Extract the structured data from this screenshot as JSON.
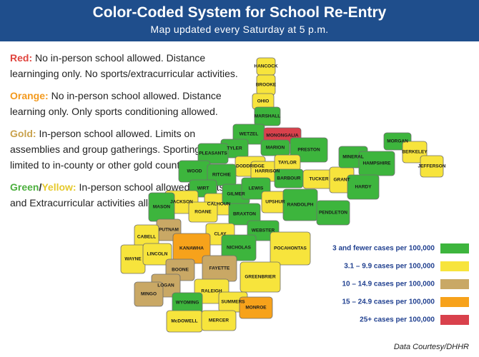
{
  "header": {
    "title": "Color-Coded System for  School Re-Entry",
    "subtitle": "Map updated every Saturday at 5 p.m."
  },
  "rules": [
    {
      "label_parts": [
        {
          "text": "Red:",
          "color": "#e0443e"
        }
      ],
      "text": "No in-person school allowed. Distance learninging only. No sports/extracurricular activities."
    },
    {
      "label_parts": [
        {
          "text": "Orange:",
          "color": "#f39a1e"
        }
      ],
      "text": "No in-person school allowed. Distance learning only. Only sports conditioning allowed."
    },
    {
      "label_parts": [
        {
          "text": "Gold:",
          "color": "#c9a24d"
        }
      ],
      "text": "In-person school allowed. Limits on assemblies and group gatherings. Sporting events limited to in-county or other gold counties."
    },
    {
      "label_parts": [
        {
          "text": "Green",
          "color": "#4caf3e"
        },
        {
          "text": "/",
          "color": "#222222"
        },
        {
          "text": "Yellow:",
          "color": "#e5c92c"
        }
      ],
      "text": "In-person school allowed. Sports and Extracurricular activities allowed."
    }
  ],
  "map": {
    "counties": [
      {
        "name": "HANCOCK",
        "color": "#f7e43c"
      },
      {
        "name": "BROOKE",
        "color": "#f7e43c"
      },
      {
        "name": "OHIO",
        "color": "#f7e43c"
      },
      {
        "name": "MARSHALL",
        "color": "#3db53d"
      },
      {
        "name": "WETZEL",
        "color": "#3db53d"
      },
      {
        "name": "MONONGALIA",
        "color": "#d9414c"
      },
      {
        "name": "MARION",
        "color": "#3db53d"
      },
      {
        "name": "PRESTON",
        "color": "#3db53d"
      },
      {
        "name": "TYLER",
        "color": "#3db53d"
      },
      {
        "name": "PLEASANTS",
        "color": "#3db53d"
      },
      {
        "name": "DODDRIDGE",
        "color": "#f7e43c"
      },
      {
        "name": "HARRISON",
        "color": "#f7e43c"
      },
      {
        "name": "TAYLOR",
        "color": "#f7e43c"
      },
      {
        "name": "BARBOUR",
        "color": "#3db53d"
      },
      {
        "name": "TUCKER",
        "color": "#f7e43c"
      },
      {
        "name": "GRANT",
        "color": "#f7e43c"
      },
      {
        "name": "MINERAL",
        "color": "#3db53d"
      },
      {
        "name": "HAMPSHIRE",
        "color": "#3db53d"
      },
      {
        "name": "MORGAN",
        "color": "#3db53d"
      },
      {
        "name": "BERKELEY",
        "color": "#f7e43c"
      },
      {
        "name": "JEFFERSON",
        "color": "#f7e43c"
      },
      {
        "name": "HARDY",
        "color": "#3db53d"
      },
      {
        "name": "WOOD",
        "color": "#3db53d"
      },
      {
        "name": "RITCHIE",
        "color": "#3db53d"
      },
      {
        "name": "WIRT",
        "color": "#3db53d"
      },
      {
        "name": "JACKSON",
        "color": "#f7e43c"
      },
      {
        "name": "CALHOUN",
        "color": "#f7e43c"
      },
      {
        "name": "GILMER",
        "color": "#3db53d"
      },
      {
        "name": "LEWIS",
        "color": "#3db53d"
      },
      {
        "name": "UPSHUR",
        "color": "#f7e43c"
      },
      {
        "name": "RANDOLPH",
        "color": "#3db53d"
      },
      {
        "name": "PENDLETON",
        "color": "#3db53d"
      },
      {
        "name": "MASON",
        "color": "#3db53d"
      },
      {
        "name": "ROANE",
        "color": "#f7e43c"
      },
      {
        "name": "BRAXTON",
        "color": "#3db53d"
      },
      {
        "name": "WEBSTER",
        "color": "#3db53d"
      },
      {
        "name": "CLAY",
        "color": "#f7e43c"
      },
      {
        "name": "PUTNAM",
        "color": "#c9a865"
      },
      {
        "name": "KANAWHA",
        "color": "#f7a21b"
      },
      {
        "name": "NICHOLAS",
        "color": "#3db53d"
      },
      {
        "name": "POCAHONTAS",
        "color": "#f7e43c"
      },
      {
        "name": "CABELL",
        "color": "#f7e43c"
      },
      {
        "name": "WAYNE",
        "color": "#f7e43c"
      },
      {
        "name": "LINCOLN",
        "color": "#f7e43c"
      },
      {
        "name": "BOONE",
        "color": "#c9a865"
      },
      {
        "name": "FAYETTE",
        "color": "#c9a865"
      },
      {
        "name": "GREENBRIER",
        "color": "#f7e43c"
      },
      {
        "name": "LOGAN",
        "color": "#c9a865"
      },
      {
        "name": "MINGO",
        "color": "#c9a865"
      },
      {
        "name": "RALEIGH",
        "color": "#f7e43c"
      },
      {
        "name": "WYOMING",
        "color": "#3db53d"
      },
      {
        "name": "SUMMERS",
        "color": "#f7e43c"
      },
      {
        "name": "MONROE",
        "color": "#f7a21b"
      },
      {
        "name": "McDOWELL",
        "color": "#f7e43c"
      },
      {
        "name": "MERCER",
        "color": "#f7e43c"
      }
    ]
  },
  "legend": [
    {
      "label": "3 and fewer cases per 100,000",
      "color": "#3db53d"
    },
    {
      "label": "3.1 – 9.9 cases per 100,000",
      "color": "#f7e43c"
    },
    {
      "label": "10 – 14.9 cases per 100,000",
      "color": "#c9a865"
    },
    {
      "label": "15 – 24.9 cases per 100,000",
      "color": "#f7a21b"
    },
    {
      "label": "25+ cases per 100,000",
      "color": "#d9414c"
    }
  ],
  "credit": "Data Courtesy/DHHR"
}
